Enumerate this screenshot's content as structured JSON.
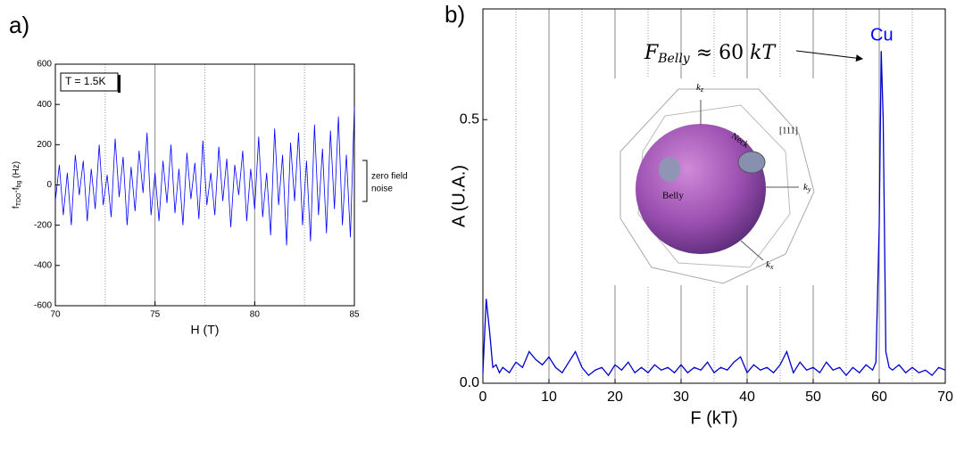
{
  "chart_data": [
    {
      "type": "line",
      "panel_label": "a)",
      "xlabel": "H (T)",
      "ylabel": [
        "f",
        "TDO",
        "-f",
        "bg",
        " (Hz)"
      ],
      "annotations": {
        "temperature": "T = 1.5K",
        "noise": [
          "zero field",
          "noise"
        ]
      },
      "xlim": [
        70,
        85
      ],
      "xticks": [
        70,
        75,
        80,
        85
      ],
      "xminor": [
        72.5,
        77.5,
        82.5
      ],
      "ylim": [
        -600,
        600
      ],
      "yticks": [
        -600,
        -400,
        -200,
        0,
        200,
        400,
        600
      ],
      "grid": true,
      "series": [
        {
          "color": "#0000ff",
          "x": [
            70,
            70.2,
            70.4,
            70.6,
            70.8,
            71,
            71.2,
            71.4,
            71.6,
            71.8,
            72,
            72.2,
            72.4,
            72.6,
            72.8,
            73,
            73.2,
            73.4,
            73.6,
            73.8,
            74,
            74.2,
            74.4,
            74.6,
            74.8,
            75,
            75.2,
            75.4,
            75.6,
            75.8,
            76,
            76.2,
            76.4,
            76.6,
            76.8,
            77,
            77.2,
            77.4,
            77.6,
            77.8,
            78,
            78.2,
            78.4,
            78.6,
            78.8,
            79,
            79.2,
            79.4,
            79.6,
            79.8,
            80,
            80.2,
            80.4,
            80.6,
            80.8,
            81,
            81.2,
            81.4,
            81.6,
            81.8,
            82,
            82.2,
            82.4,
            82.6,
            82.8,
            83,
            83.2,
            83.4,
            83.6,
            83.8,
            84,
            84.2,
            84.4,
            84.6,
            84.8,
            85
          ],
          "values": [
            -80,
            100,
            -150,
            60,
            -200,
            150,
            -50,
            120,
            -180,
            80,
            -120,
            200,
            -100,
            50,
            -160,
            230,
            -60,
            140,
            -200,
            90,
            -130,
            170,
            -40,
            260,
            -150,
            60,
            -180,
            120,
            -90,
            200,
            -140,
            80,
            -200,
            160,
            -70,
            110,
            -170,
            220,
            -100,
            60,
            -150,
            190,
            -80,
            130,
            -210,
            100,
            -50,
            170,
            -180,
            80,
            -120,
            240,
            -160,
            60,
            -250,
            280,
            -100,
            150,
            -300,
            210,
            -80,
            260,
            -200,
            120,
            -280,
            300,
            -150,
            180,
            -240,
            270,
            -120,
            340,
            -200,
            150,
            -260,
            390
          ]
        }
      ]
    },
    {
      "type": "line",
      "panel_label": "b)",
      "xlabel": "F (kT)",
      "ylabel": "A (U.A.)",
      "annotations": {
        "peak": "Cu",
        "belly": [
          "F",
          "Belly",
          " ≈ 60 ",
          "kT"
        ]
      },
      "inset_labels": {
        "kz": [
          "k",
          "z"
        ],
        "ky": [
          "k",
          "y"
        ],
        "kx": [
          "k",
          "x"
        ],
        "neck": "Neck",
        "belly": "Belly",
        "direction": "[111]"
      },
      "xlim": [
        0,
        70
      ],
      "xticks": [
        0,
        10,
        20,
        30,
        40,
        50,
        60,
        70
      ],
      "xminor": [
        5,
        15,
        25,
        35,
        45,
        55,
        65
      ],
      "ylim": [
        0,
        0.71
      ],
      "yticks": [
        {
          "value": 0,
          "label": "0.0"
        },
        0.5
      ],
      "grid": true,
      "series": [
        {
          "color": "#0000cc",
          "x": [
            0,
            0.5,
            1,
            1.5,
            2,
            2.5,
            3,
            4,
            5,
            6,
            7,
            8,
            9,
            10,
            11,
            12,
            13,
            14,
            15,
            16,
            17,
            18,
            19,
            20,
            21,
            22,
            23,
            24,
            25,
            26,
            27,
            28,
            29,
            30,
            31,
            32,
            33,
            34,
            35,
            36,
            37,
            38,
            39,
            40,
            41,
            42,
            43,
            44,
            45,
            46,
            47,
            48,
            49,
            50,
            51,
            52,
            53,
            54,
            55,
            56,
            57,
            58,
            59,
            59.5,
            60,
            60.3,
            60.6,
            61,
            61.5,
            62,
            63,
            64,
            65,
            66,
            67,
            68,
            69,
            70
          ],
          "values": [
            0.02,
            0.16,
            0.1,
            0.03,
            0.035,
            0.02,
            0.03,
            0.02,
            0.04,
            0.03,
            0.06,
            0.045,
            0.035,
            0.05,
            0.03,
            0.02,
            0.04,
            0.06,
            0.03,
            0.015,
            0.025,
            0.03,
            0.015,
            0.035,
            0.025,
            0.04,
            0.02,
            0.03,
            0.02,
            0.035,
            0.025,
            0.03,
            0.02,
            0.035,
            0.02,
            0.03,
            0.025,
            0.04,
            0.02,
            0.03,
            0.025,
            0.04,
            0.05,
            0.02,
            0.035,
            0.025,
            0.03,
            0.02,
            0.035,
            0.06,
            0.02,
            0.04,
            0.025,
            0.03,
            0.02,
            0.04,
            0.025,
            0.03,
            0.015,
            0.03,
            0.02,
            0.035,
            0.025,
            0.04,
            0.3,
            0.63,
            0.5,
            0.06,
            0.03,
            0.025,
            0.035,
            0.02,
            0.03,
            0.02,
            0.025,
            0.015,
            0.03,
            0.025
          ]
        }
      ]
    }
  ]
}
